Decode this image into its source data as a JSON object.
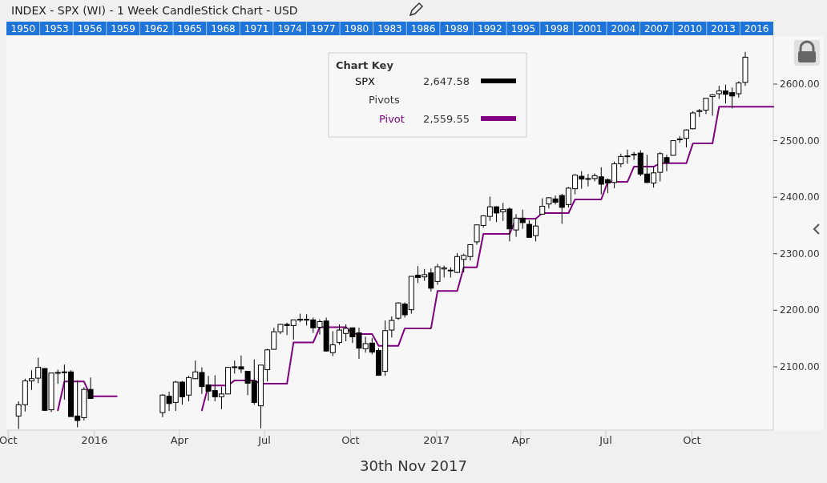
{
  "chart_data": {
    "type": "candlestick",
    "title": "INDEX - SPX (WI) - 1 Week CandleStick Chart - USD",
    "legend_title": "Chart Key",
    "legend": "top",
    "grid": false,
    "annotations": [
      "2,647.58",
      "2,559.55",
      "Pivots",
      "30th Nov 2017"
    ],
    "xlim": [
      "2015-09-29",
      "2017-12-27"
    ],
    "xticks": [
      {
        "value": "2015-10-01",
        "label": "Oct"
      },
      {
        "value": "2016-01-01",
        "label": "2016"
      },
      {
        "value": "2016-04-01",
        "label": "Apr"
      },
      {
        "value": "2016-07-01",
        "label": "Jul"
      },
      {
        "value": "2016-10-01",
        "label": "Oct"
      },
      {
        "value": "2017-01-01",
        "label": "2017"
      },
      {
        "value": "2017-04-01",
        "label": "Apr"
      },
      {
        "value": "2017-07-01",
        "label": "Jul"
      },
      {
        "value": "2017-10-01",
        "label": "Oct"
      }
    ],
    "ylim": [
      1988,
      2685
    ],
    "yticks": [
      {
        "value": 2100,
        "label": "2100.00"
      },
      {
        "value": 2200,
        "label": "2200.00"
      },
      {
        "value": 2300,
        "label": "2300.00"
      },
      {
        "value": 2400,
        "label": "2400.00"
      },
      {
        "value": 2500,
        "label": "2500.00"
      },
      {
        "value": 2600,
        "label": "2600.00"
      }
    ],
    "x2lim": [
      1948.5,
      2017.5
    ],
    "x2ticks": [
      1950,
      1953,
      1956,
      1959,
      1962,
      1965,
      1968,
      1971,
      1974,
      1977,
      1980,
      1983,
      1986,
      1989,
      1992,
      1995,
      1998,
      2001,
      2004,
      2007,
      2010,
      2013,
      2016
    ],
    "x": [
      "2015-10-12",
      "2015-10-19",
      "2015-10-26",
      "2015-11-02",
      "2015-11-09",
      "2015-11-16",
      "2015-11-23",
      "2015-11-30",
      "2015-12-07",
      "2015-12-14",
      "2015-12-21",
      "2015-12-28",
      "2016-03-14",
      "2016-03-21",
      "2016-03-28",
      "2016-04-04",
      "2016-04-11",
      "2016-04-18",
      "2016-04-25",
      "2016-05-02",
      "2016-05-09",
      "2016-05-16",
      "2016-05-23",
      "2016-05-30",
      "2016-06-06",
      "2016-06-13",
      "2016-06-20",
      "2016-06-27",
      "2016-07-04",
      "2016-07-11",
      "2016-07-18",
      "2016-07-25",
      "2016-08-01",
      "2016-08-08",
      "2016-08-15",
      "2016-08-22",
      "2016-08-29",
      "2016-09-05",
      "2016-09-12",
      "2016-09-19",
      "2016-09-26",
      "2016-10-03",
      "2016-10-10",
      "2016-10-17",
      "2016-10-24",
      "2016-10-31",
      "2016-11-07",
      "2016-11-14",
      "2016-11-21",
      "2016-11-28",
      "2016-12-05",
      "2016-12-12",
      "2016-12-19",
      "2016-12-26",
      "2017-01-02",
      "2017-01-09",
      "2017-01-16",
      "2017-01-23",
      "2017-01-30",
      "2017-02-06",
      "2017-02-13",
      "2017-02-20",
      "2017-02-27",
      "2017-03-06",
      "2017-03-13",
      "2017-03-20",
      "2017-03-27",
      "2017-04-03",
      "2017-04-10",
      "2017-04-17",
      "2017-04-24",
      "2017-05-01",
      "2017-05-08",
      "2017-05-15",
      "2017-05-22",
      "2017-05-29",
      "2017-06-05",
      "2017-06-12",
      "2017-06-19",
      "2017-06-26",
      "2017-07-03",
      "2017-07-10",
      "2017-07-17",
      "2017-07-24",
      "2017-07-31",
      "2017-08-07",
      "2017-08-14",
      "2017-08-21",
      "2017-08-28",
      "2017-09-04",
      "2017-09-11",
      "2017-09-18",
      "2017-09-25",
      "2017-10-02",
      "2017-10-09",
      "2017-10-16",
      "2017-10-23",
      "2017-10-30",
      "2017-11-06",
      "2017-11-13",
      "2017-11-20",
      "2017-11-27"
    ],
    "series": [
      {
        "name": "SPX",
        "color": "#000000",
        "ohlc": [
          [
            2013,
            2039,
            1990,
            2033
          ],
          [
            2033,
            2079,
            2021,
            2075
          ],
          [
            2075,
            2094,
            2059,
            2079
          ],
          [
            2080,
            2116,
            2071,
            2099
          ],
          [
            2097,
            2097,
            2022,
            2023
          ],
          [
            2024,
            2089,
            2020,
            2089
          ],
          [
            2089,
            2095,
            2070,
            2090
          ],
          [
            2090,
            2104,
            2042,
            2091
          ],
          [
            2091,
            2094,
            2012,
            2012
          ],
          [
            2013,
            2076,
            1993,
            2005
          ],
          [
            2010,
            2064,
            2005,
            2060
          ],
          [
            2060,
            2081,
            2043,
            2044
          ],
          [
            2019,
            2052,
            2011,
            2050
          ],
          [
            2048,
            2056,
            2022,
            2035
          ],
          [
            2037,
            2075,
            2022,
            2073
          ],
          [
            2073,
            2075,
            2033,
            2047
          ],
          [
            2050,
            2084,
            2039,
            2081
          ],
          [
            2079,
            2111,
            2078,
            2091
          ],
          [
            2090,
            2099,
            2052,
            2065
          ],
          [
            2068,
            2084,
            2040,
            2057
          ],
          [
            2058,
            2085,
            2039,
            2047
          ],
          [
            2047,
            2065,
            2025,
            2052
          ],
          [
            2052,
            2100,
            2052,
            2099
          ],
          [
            2100,
            2111,
            2088,
            2099
          ],
          [
            2100,
            2120,
            2089,
            2096
          ],
          [
            2092,
            2092,
            2050,
            2071
          ],
          [
            2075,
            2113,
            2033,
            2037
          ],
          [
            2031,
            2103,
            1991,
            2103
          ],
          [
            2095,
            2132,
            2074,
            2130
          ],
          [
            2131,
            2169,
            2131,
            2162
          ],
          [
            2162,
            2176,
            2158,
            2175
          ],
          [
            2175,
            2178,
            2156,
            2173
          ],
          [
            2173,
            2183,
            2148,
            2183
          ],
          [
            2183,
            2194,
            2179,
            2184
          ],
          [
            2183,
            2193,
            2173,
            2184
          ],
          [
            2183,
            2187,
            2160,
            2169
          ],
          [
            2170,
            2184,
            2157,
            2180
          ],
          [
            2181,
            2187,
            2127,
            2128
          ],
          [
            2125,
            2163,
            2119,
            2139
          ],
          [
            2143,
            2175,
            2139,
            2165
          ],
          [
            2159,
            2175,
            2145,
            2168
          ],
          [
            2169,
            2169,
            2142,
            2153
          ],
          [
            2160,
            2169,
            2114,
            2133
          ],
          [
            2132,
            2153,
            2125,
            2141
          ],
          [
            2142,
            2151,
            2122,
            2126
          ],
          [
            2129,
            2133,
            2084,
            2085
          ],
          [
            2092,
            2182,
            2084,
            2164
          ],
          [
            2165,
            2189,
            2152,
            2182
          ],
          [
            2186,
            2214,
            2183,
            2213
          ],
          [
            2211,
            2214,
            2187,
            2192
          ],
          [
            2201,
            2260,
            2194,
            2260
          ],
          [
            2262,
            2278,
            2248,
            2258
          ],
          [
            2259,
            2273,
            2252,
            2263
          ],
          [
            2266,
            2274,
            2233,
            2239
          ],
          [
            2251,
            2282,
            2245,
            2277
          ],
          [
            2273,
            2279,
            2258,
            2275
          ],
          [
            2270,
            2276,
            2258,
            2271
          ],
          [
            2267,
            2301,
            2266,
            2295
          ],
          [
            2290,
            2300,
            2267,
            2297
          ],
          [
            2295,
            2317,
            2288,
            2316
          ],
          [
            2321,
            2351,
            2316,
            2351
          ],
          [
            2350,
            2368,
            2346,
            2367
          ],
          [
            2366,
            2401,
            2358,
            2383
          ],
          [
            2383,
            2384,
            2356,
            2372
          ],
          [
            2374,
            2390,
            2358,
            2378
          ],
          [
            2379,
            2382,
            2322,
            2344
          ],
          [
            2342,
            2370,
            2330,
            2363
          ],
          [
            2363,
            2378,
            2344,
            2355
          ],
          [
            2352,
            2359,
            2328,
            2329
          ],
          [
            2332,
            2361,
            2322,
            2349
          ],
          [
            2370,
            2398,
            2370,
            2384
          ],
          [
            2388,
            2400,
            2380,
            2399
          ],
          [
            2397,
            2403,
            2387,
            2391
          ],
          [
            2403,
            2406,
            2353,
            2382
          ],
          [
            2387,
            2418,
            2382,
            2416
          ],
          [
            2415,
            2441,
            2405,
            2439
          ],
          [
            2437,
            2446,
            2415,
            2432
          ],
          [
            2432,
            2441,
            2419,
            2433
          ],
          [
            2433,
            2442,
            2428,
            2438
          ],
          [
            2436,
            2453,
            2405,
            2423
          ],
          [
            2431,
            2433,
            2407,
            2425
          ],
          [
            2426,
            2463,
            2416,
            2459
          ],
          [
            2459,
            2477,
            2453,
            2472
          ],
          [
            2473,
            2484,
            2459,
            2472
          ],
          [
            2476,
            2480,
            2466,
            2476
          ],
          [
            2478,
            2483,
            2437,
            2441
          ],
          [
            2441,
            2475,
            2425,
            2426
          ],
          [
            2425,
            2454,
            2417,
            2443
          ],
          [
            2444,
            2480,
            2428,
            2477
          ],
          [
            2470,
            2475,
            2446,
            2461
          ],
          [
            2474,
            2500,
            2474,
            2500
          ],
          [
            2503,
            2508,
            2496,
            2502
          ],
          [
            2504,
            2520,
            2488,
            2519
          ],
          [
            2521,
            2552,
            2520,
            2549
          ],
          [
            2552,
            2556,
            2542,
            2553
          ],
          [
            2554,
            2575,
            2547,
            2575
          ],
          [
            2578,
            2582,
            2544,
            2581
          ],
          [
            2583,
            2597,
            2574,
            2588
          ],
          [
            2588,
            2599,
            2566,
            2582
          ],
          [
            2585,
            2594,
            2557,
            2579
          ],
          [
            2583,
            2605,
            2576,
            2602
          ],
          [
            2603,
            2657,
            2597,
            2647.58
          ]
        ]
      },
      {
        "name": "Pivot",
        "type": "line",
        "color": "#800080",
        "x": [
          "2015-11-23",
          "2015-11-30",
          "2015-12-21",
          "2015-12-28",
          "2016-01-25",
          "2016-03-28",
          "2016-04-25",
          "2016-05-02",
          "2016-05-23",
          "2016-05-30",
          "2016-06-20",
          "2016-06-27",
          "2016-07-25",
          "2016-08-01",
          "2016-08-22",
          "2016-08-29",
          "2016-09-26",
          "2016-10-03",
          "2016-10-24",
          "2016-10-31",
          "2016-11-21",
          "2016-11-28",
          "2016-12-26",
          "2017-01-02",
          "2017-01-23",
          "2017-01-30",
          "2017-02-13",
          "2017-02-20",
          "2017-03-20",
          "2017-03-27",
          "2017-04-17",
          "2017-04-24",
          "2017-05-22",
          "2017-05-29",
          "2017-06-26",
          "2017-07-03",
          "2017-07-24",
          "2017-07-31",
          "2017-08-21",
          "2017-08-28",
          "2017-09-25",
          "2017-10-02",
          "2017-10-23",
          "2017-10-30",
          "2017-12-27"
        ],
        "values": [
          2023,
          2074,
          2074,
          2048,
          2048,
          null,
          2023,
          2067,
          2067,
          2076,
          2076,
          2070,
          2070,
          2143,
          2143,
          2170,
          2170,
          2158,
          2158,
          2137,
          2137,
          2168,
          2168,
          2234,
          2234,
          2276,
          2276,
          2335,
          2335,
          2362,
          2362,
          2372,
          2372,
          2396,
          2396,
          2427,
          2427,
          2454,
          2454,
          2460,
          2460,
          2495,
          2495,
          2560,
          2560
        ]
      }
    ]
  }
}
